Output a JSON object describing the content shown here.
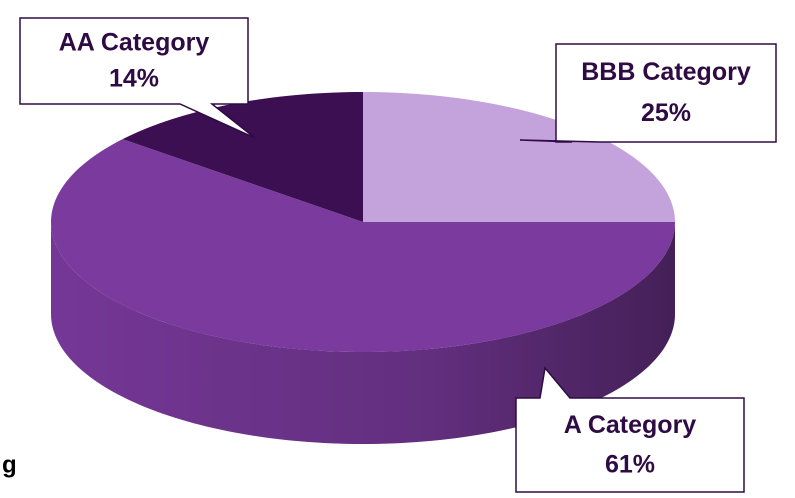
{
  "chart_data": {
    "type": "pie",
    "categories": [
      "BBB Category",
      "A Category",
      "AA Category"
    ],
    "values": [
      25,
      61,
      14
    ],
    "value_labels": [
      "25%",
      "61%",
      "14%"
    ],
    "colors": [
      "#c4a2dc",
      "#7b3a9e",
      "#3b0f52"
    ],
    "start_angle": 0,
    "direction": "clockwise",
    "three_d": true
  },
  "fragment_text": "g"
}
